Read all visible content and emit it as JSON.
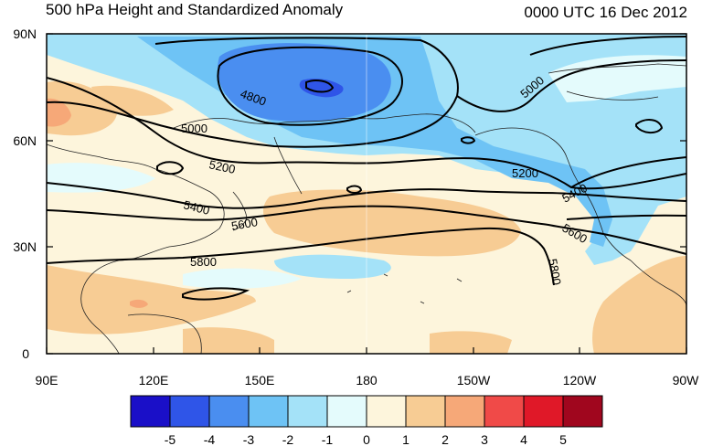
{
  "header": {
    "title": "500 hPa Height and Standardized Anomaly",
    "valid_time": "0000 UTC 16 Dec 2012"
  },
  "axes": {
    "x_ticks": [
      "90E",
      "120E",
      "150E",
      "180",
      "150W",
      "120W",
      "90W"
    ],
    "y_ticks": [
      "90N",
      "60N",
      "30N",
      "0"
    ],
    "lon_range": [
      90,
      270
    ],
    "lat_range": [
      0,
      90
    ]
  },
  "colorbar": {
    "labels": [
      "-5",
      "-4",
      "-3",
      "-2",
      "-1",
      "0",
      "1",
      "2",
      "3",
      "4",
      "5"
    ],
    "colors": [
      "#1a0fc8",
      "#2f55e8",
      "#4a8ef0",
      "#6ec3f5",
      "#a4e2f8",
      "#e4fbfc",
      "#fdf5dc",
      "#f7cc94",
      "#f6a878",
      "#f04a48",
      "#e01828",
      "#a0061e"
    ]
  },
  "contours": {
    "labels": [
      "4800",
      "5000",
      "5200",
      "5400",
      "5600",
      "5800",
      "5000",
      "5200",
      "5400",
      "5600",
      "5800"
    ]
  }
}
